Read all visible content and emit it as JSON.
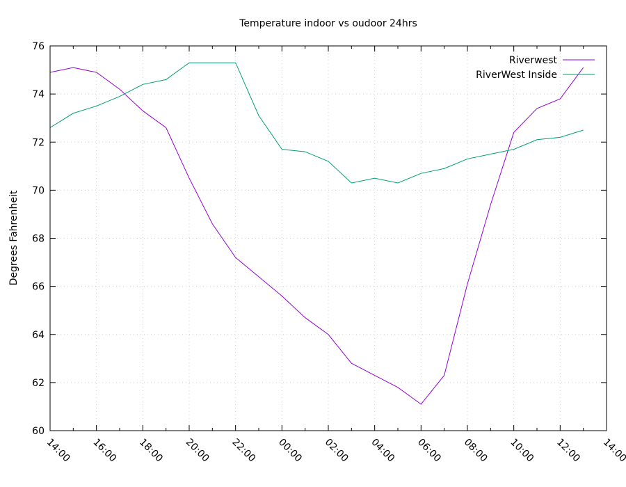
{
  "chart_data": {
    "type": "line",
    "title": "Temperature indoor vs oudoor 24hrs",
    "xlabel": "",
    "ylabel": "Degrees Fahrenheit",
    "ylim": [
      60,
      76
    ],
    "xlim": [
      "14:00",
      "14:00"
    ],
    "grid": true,
    "legend_position": "top-right",
    "x_ticks": [
      "14:00",
      "16:00",
      "18:00",
      "20:00",
      "22:00",
      "00:00",
      "02:00",
      "04:00",
      "06:00",
      "08:00",
      "10:00",
      "12:00",
      "14:00"
    ],
    "y_ticks": [
      60,
      62,
      64,
      66,
      68,
      70,
      72,
      74,
      76
    ],
    "x": [
      "14:00",
      "15:00",
      "16:00",
      "17:00",
      "18:00",
      "19:00",
      "20:00",
      "21:00",
      "22:00",
      "23:00",
      "00:00",
      "01:00",
      "02:00",
      "03:00",
      "04:00",
      "05:00",
      "06:00",
      "07:00",
      "08:00",
      "09:00",
      "10:00",
      "11:00",
      "12:00",
      "13:00"
    ],
    "series": [
      {
        "name": "Riverwest",
        "color": "#9400d3",
        "values": [
          74.9,
          75.1,
          74.9,
          74.2,
          73.3,
          72.6,
          70.5,
          68.6,
          67.2,
          66.4,
          65.6,
          64.7,
          64.0,
          62.8,
          62.3,
          61.8,
          61.1,
          62.3,
          66.1,
          69.4,
          72.4,
          73.4,
          73.8,
          75.1
        ]
      },
      {
        "name": "RiverWest Inside",
        "color": "#009e73",
        "values": [
          72.6,
          73.2,
          73.5,
          73.9,
          74.4,
          74.6,
          75.3,
          75.3,
          75.3,
          73.1,
          71.7,
          71.6,
          71.2,
          70.3,
          70.5,
          70.3,
          70.7,
          70.9,
          71.3,
          71.5,
          71.7,
          72.1,
          72.2,
          72.5
        ]
      }
    ]
  }
}
